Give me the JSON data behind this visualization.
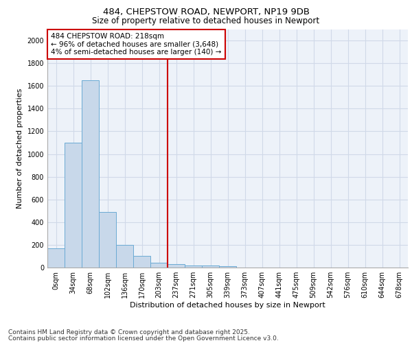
{
  "title_line1": "484, CHEPSTOW ROAD, NEWPORT, NP19 9DB",
  "title_line2": "Size of property relative to detached houses in Newport",
  "xlabel": "Distribution of detached houses by size in Newport",
  "ylabel": "Number of detached properties",
  "categories": [
    "0sqm",
    "34sqm",
    "68sqm",
    "102sqm",
    "136sqm",
    "170sqm",
    "203sqm",
    "237sqm",
    "271sqm",
    "305sqm",
    "339sqm",
    "373sqm",
    "407sqm",
    "441sqm",
    "475sqm",
    "509sqm",
    "542sqm",
    "576sqm",
    "610sqm",
    "644sqm",
    "678sqm"
  ],
  "bar_heights": [
    170,
    1100,
    1650,
    490,
    200,
    100,
    45,
    30,
    20,
    20,
    10,
    0,
    0,
    0,
    0,
    0,
    0,
    0,
    0,
    0,
    0
  ],
  "bar_color": "#c8d8ea",
  "bar_edge_color": "#6aaad4",
  "grid_color": "#d0d9e8",
  "background_color": "#edf2f9",
  "annotation_text": "484 CHEPSTOW ROAD: 218sqm\n← 96% of detached houses are smaller (3,648)\n4% of semi-detached houses are larger (140) →",
  "annotation_box_facecolor": "#ffffff",
  "annotation_box_edgecolor": "#cc0000",
  "vline_x": 6.5,
  "vline_color": "#cc0000",
  "ylim": [
    0,
    2100
  ],
  "yticks": [
    0,
    200,
    400,
    600,
    800,
    1000,
    1200,
    1400,
    1600,
    1800,
    2000
  ],
  "footnote_line1": "Contains HM Land Registry data © Crown copyright and database right 2025.",
  "footnote_line2": "Contains public sector information licensed under the Open Government Licence v3.0.",
  "title_fontsize": 9.5,
  "subtitle_fontsize": 8.5,
  "axis_label_fontsize": 8,
  "tick_fontsize": 7,
  "annotation_fontsize": 7.5,
  "footnote_fontsize": 6.5
}
